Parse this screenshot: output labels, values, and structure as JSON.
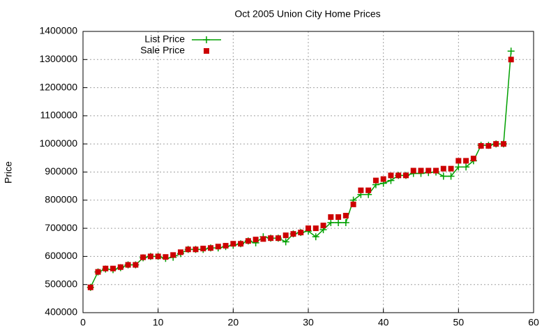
{
  "chart_data": {
    "type": "line",
    "title": "Oct 2005 Union City Home Prices",
    "y_label": "Price",
    "x": [
      1,
      2,
      3,
      4,
      5,
      6,
      7,
      8,
      9,
      10,
      11,
      12,
      13,
      14,
      15,
      16,
      17,
      18,
      19,
      20,
      21,
      22,
      23,
      24,
      25,
      26,
      27,
      28,
      29,
      30,
      31,
      32,
      33,
      34,
      35,
      36,
      37,
      38,
      39,
      40,
      41,
      42,
      43,
      44,
      45,
      46,
      47,
      48,
      49,
      50,
      51,
      52,
      53,
      54,
      55,
      56,
      57
    ],
    "series": [
      {
        "name": "List Price",
        "color": "#00a000",
        "marker": "plus",
        "line": true,
        "values": [
          490000,
          545000,
          555000,
          553000,
          560000,
          570000,
          570000,
          595000,
          600000,
          600000,
          593000,
          597000,
          610000,
          625000,
          625000,
          625000,
          630000,
          630000,
          635000,
          640000,
          645000,
          655000,
          648000,
          670000,
          665000,
          665000,
          652000,
          680000,
          685000,
          690000,
          670000,
          695000,
          720000,
          720000,
          720000,
          800000,
          820000,
          820000,
          855000,
          860000,
          870000,
          888000,
          888000,
          895000,
          895000,
          898000,
          900000,
          885000,
          885000,
          918000,
          918000,
          940000,
          995000,
          995000,
          1000000,
          1000000,
          1330000
        ]
      },
      {
        "name": "Sale Price",
        "color": "#cc0000",
        "marker": "square",
        "line": false,
        "values": [
          490000,
          545000,
          557000,
          557000,
          562000,
          570000,
          570000,
          597000,
          600000,
          600000,
          598000,
          605000,
          615000,
          625000,
          625000,
          628000,
          630000,
          635000,
          638000,
          645000,
          645000,
          655000,
          660000,
          662000,
          665000,
          665000,
          675000,
          680000,
          685000,
          700000,
          700000,
          710000,
          740000,
          740000,
          745000,
          785000,
          835000,
          835000,
          870000,
          875000,
          888000,
          888000,
          888000,
          905000,
          905000,
          905000,
          905000,
          912000,
          912000,
          940000,
          940000,
          948000,
          993000,
          993000,
          1000000,
          1000000,
          1300000
        ]
      }
    ],
    "xlim": [
      0,
      60
    ],
    "xticks": [
      0,
      10,
      20,
      30,
      40,
      50,
      60
    ],
    "ylim": [
      400000,
      1400000
    ],
    "yticks": [
      400000,
      500000,
      600000,
      700000,
      800000,
      900000,
      1000000,
      1100000,
      1200000,
      1300000,
      1400000
    ],
    "grid": true,
    "legend": "top-left"
  }
}
